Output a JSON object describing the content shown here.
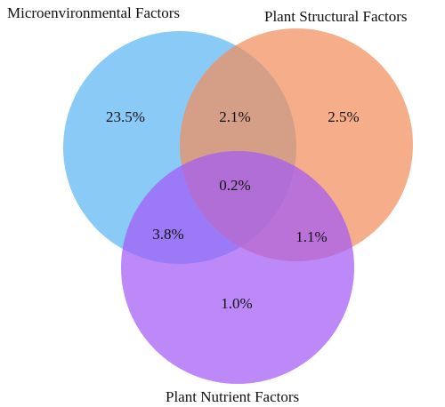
{
  "sets": [
    {
      "id": "micro",
      "label": "Microenvironmental Factors",
      "color": "#5DB5F2"
    },
    {
      "id": "structural",
      "label": "Plant Structural Factors",
      "color": "#F28E5B"
    },
    {
      "id": "nutrient",
      "label": "Plant Nutrient Factors",
      "color": "#A35CF7"
    }
  ],
  "regions": {
    "micro_only": "23.5%",
    "structural_only": "2.5%",
    "nutrient_only": "1.0%",
    "micro_structural": "2.1%",
    "micro_nutrient": "3.8%",
    "structural_nutrient": "1.1%",
    "all_three": "0.2%"
  }
}
